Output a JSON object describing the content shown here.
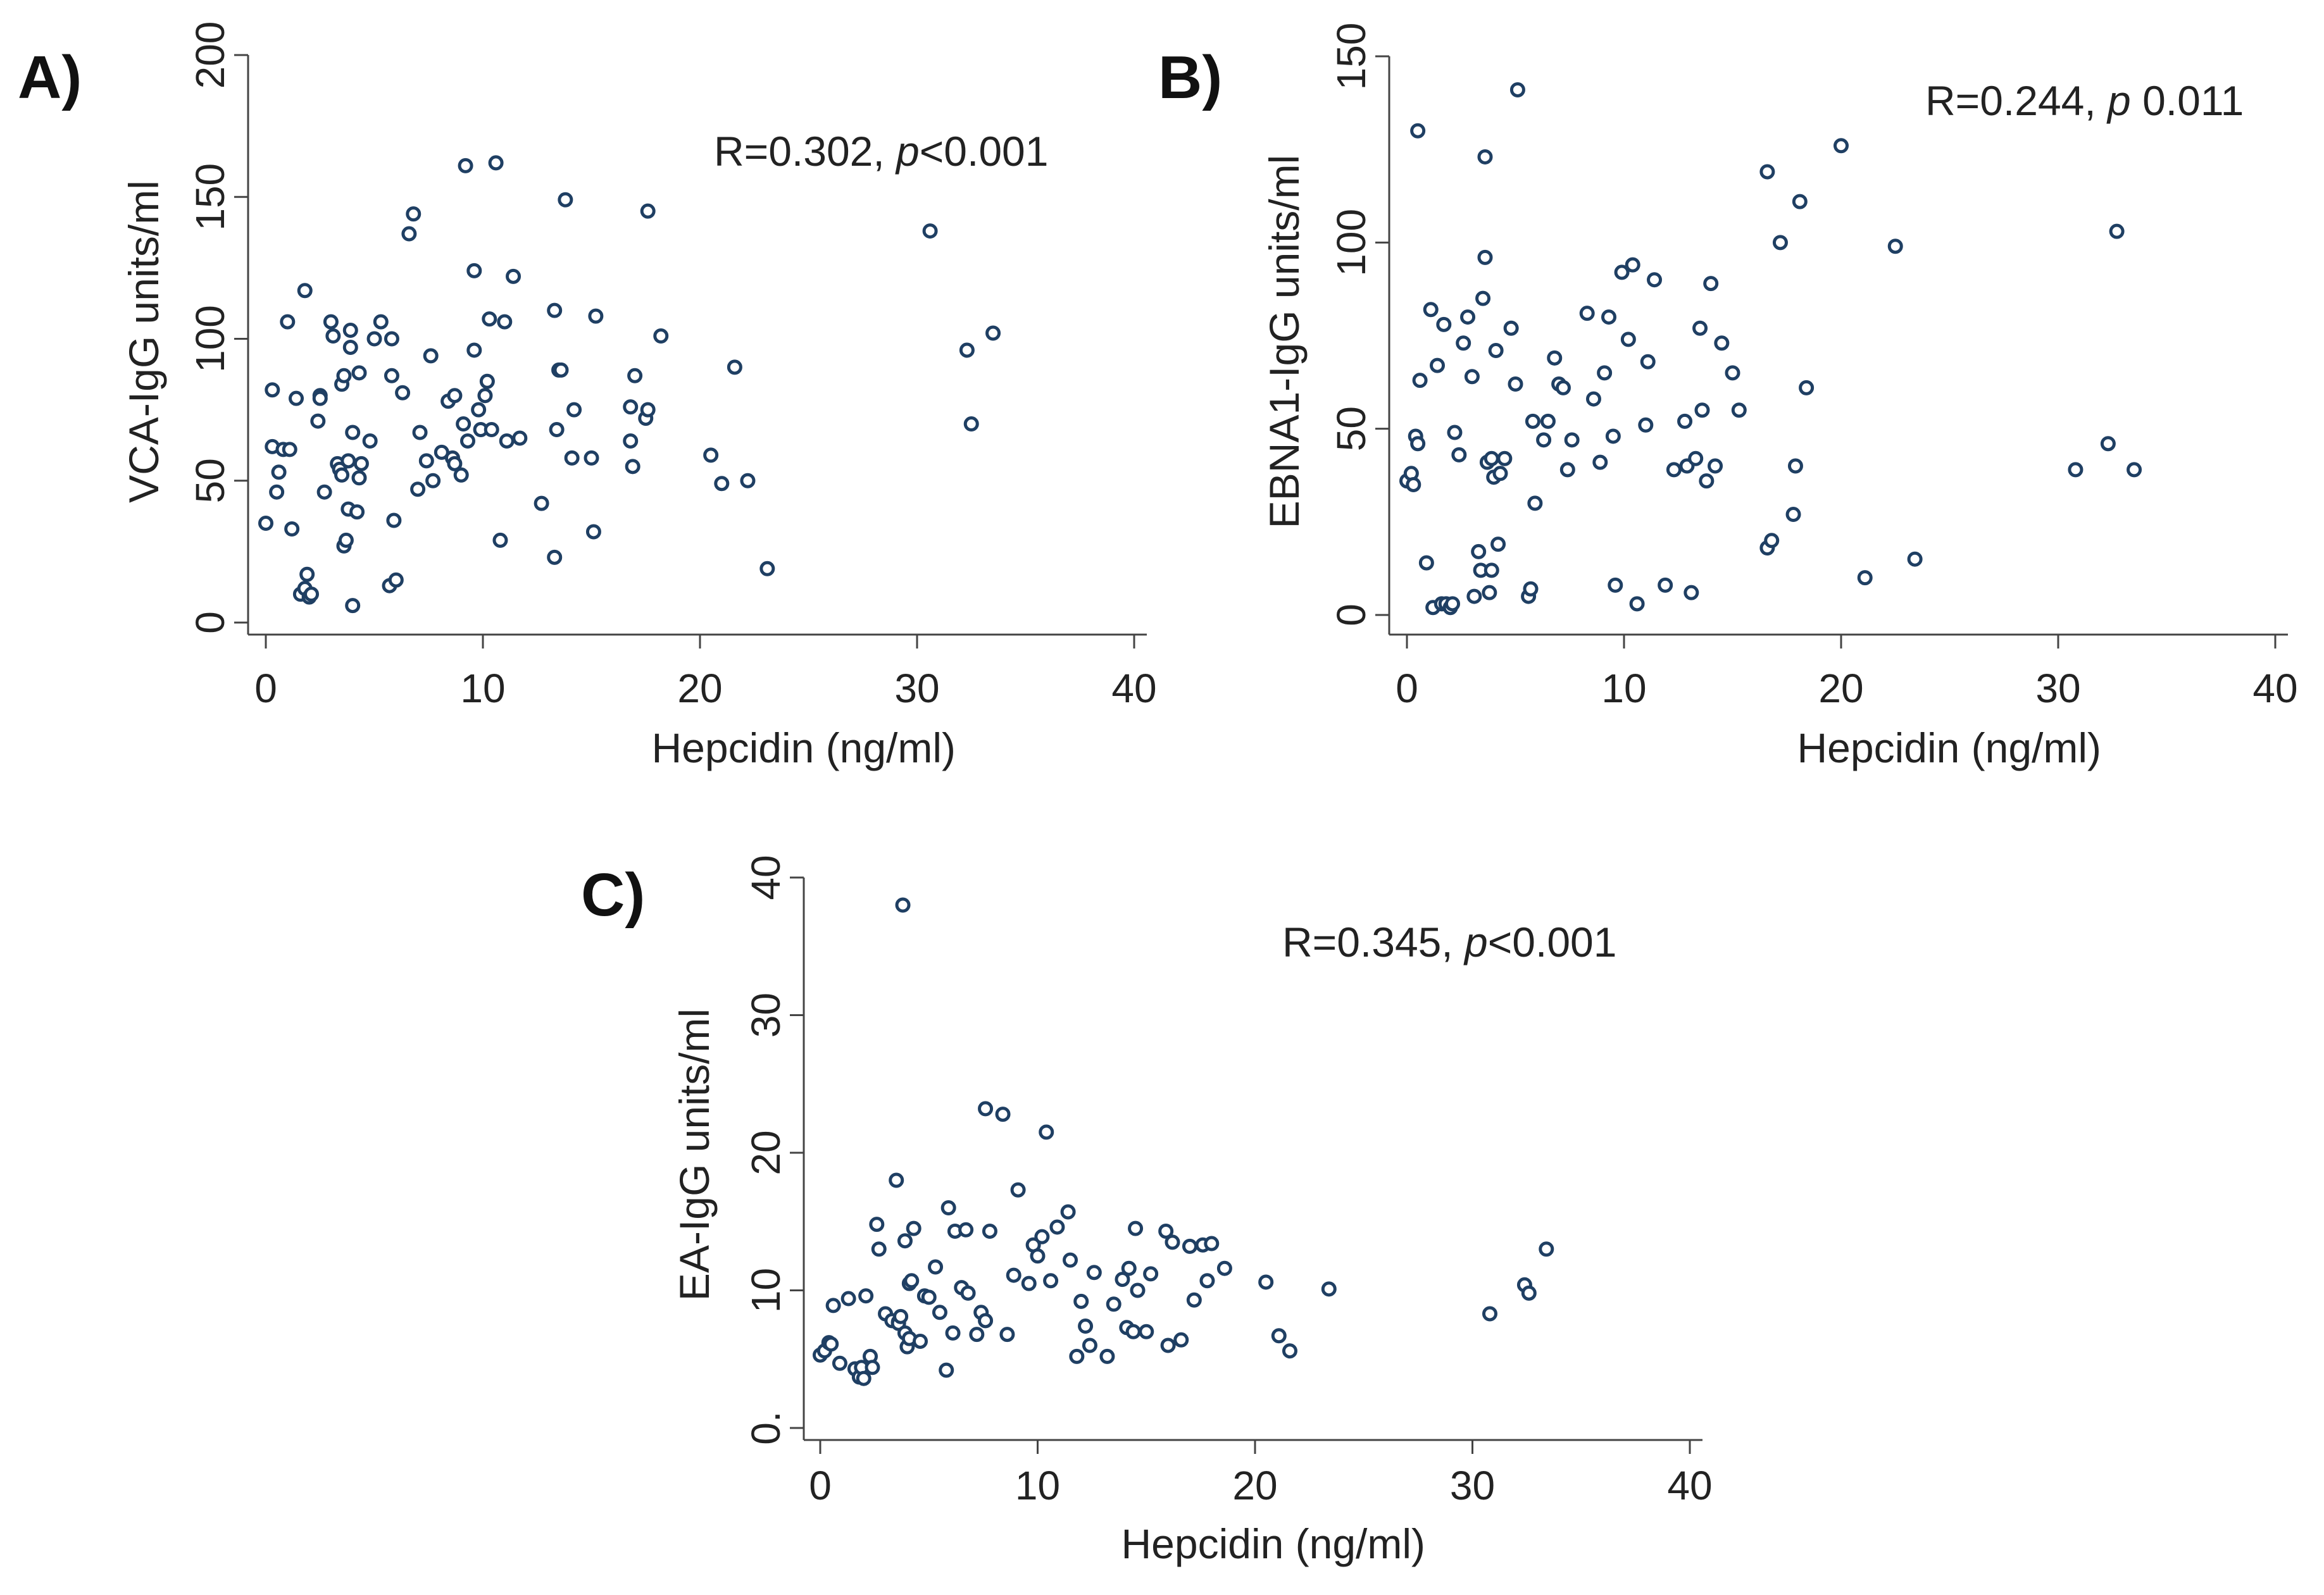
{
  "colors": {
    "marker": "#1f3f63",
    "axis": "#444444",
    "text": "#222222"
  },
  "chart_data": [
    {
      "panel": "A)",
      "type": "scatter",
      "title": "",
      "annotation_prefix": "R=0.302, ",
      "annotation_p": "p",
      "annotation_suffix": "<0.001",
      "xlabel": "Hepcidin (ng/ml)",
      "ylabel": "VCA-IgG units/ml",
      "xlim": [
        0,
        40
      ],
      "ylim": [
        0,
        200
      ],
      "xticks": [
        "0",
        "10",
        "20",
        "30",
        "40"
      ],
      "yticks": [
        "0",
        "50",
        "100",
        "150",
        "200"
      ],
      "xtick_values": [
        0,
        10,
        20,
        30,
        40
      ],
      "ytick_values": [
        0,
        50,
        100,
        150,
        200
      ],
      "points": [
        [
          0.0,
          35
        ],
        [
          0.3,
          82
        ],
        [
          0.3,
          62
        ],
        [
          0.5,
          46
        ],
        [
          0.6,
          53
        ],
        [
          0.8,
          61
        ],
        [
          1.0,
          106
        ],
        [
          1.1,
          61
        ],
        [
          1.2,
          33
        ],
        [
          1.4,
          79
        ],
        [
          1.6,
          10
        ],
        [
          1.8,
          12
        ],
        [
          1.8,
          117
        ],
        [
          1.9,
          17
        ],
        [
          2.0,
          9
        ],
        [
          2.1,
          10
        ],
        [
          2.4,
          71
        ],
        [
          2.5,
          80
        ],
        [
          2.5,
          79
        ],
        [
          2.7,
          46
        ],
        [
          3.0,
          106
        ],
        [
          3.1,
          101
        ],
        [
          3.3,
          56
        ],
        [
          3.4,
          54
        ],
        [
          3.5,
          52
        ],
        [
          3.5,
          84
        ],
        [
          3.6,
          87
        ],
        [
          3.6,
          27
        ],
        [
          3.7,
          29
        ],
        [
          3.8,
          40
        ],
        [
          3.8,
          57
        ],
        [
          3.9,
          97
        ],
        [
          3.9,
          103
        ],
        [
          4.0,
          6
        ],
        [
          4.0,
          67
        ],
        [
          4.2,
          39
        ],
        [
          4.3,
          51
        ],
        [
          4.3,
          88
        ],
        [
          4.4,
          56
        ],
        [
          4.8,
          64
        ],
        [
          5.0,
          100
        ],
        [
          5.3,
          106
        ],
        [
          5.7,
          13
        ],
        [
          5.8,
          100
        ],
        [
          5.8,
          87
        ],
        [
          5.9,
          36
        ],
        [
          6.0,
          15
        ],
        [
          6.3,
          81
        ],
        [
          6.6,
          137
        ],
        [
          6.8,
          144
        ],
        [
          7.0,
          47
        ],
        [
          7.1,
          67
        ],
        [
          7.4,
          57
        ],
        [
          7.6,
          94
        ],
        [
          7.7,
          50
        ],
        [
          8.1,
          60
        ],
        [
          8.4,
          78
        ],
        [
          8.6,
          58
        ],
        [
          8.7,
          80
        ],
        [
          8.7,
          56
        ],
        [
          9.0,
          52
        ],
        [
          9.1,
          70
        ],
        [
          9.2,
          161
        ],
        [
          9.3,
          64
        ],
        [
          9.6,
          124
        ],
        [
          9.6,
          96
        ],
        [
          9.8,
          75
        ],
        [
          9.9,
          68
        ],
        [
          10.1,
          80
        ],
        [
          10.2,
          85
        ],
        [
          10.3,
          107
        ],
        [
          10.4,
          68
        ],
        [
          10.6,
          162
        ],
        [
          10.8,
          29
        ],
        [
          11.0,
          106
        ],
        [
          11.1,
          64
        ],
        [
          11.4,
          122
        ],
        [
          11.7,
          65
        ],
        [
          12.7,
          42
        ],
        [
          13.3,
          23
        ],
        [
          13.3,
          110
        ],
        [
          13.4,
          68
        ],
        [
          13.5,
          89
        ],
        [
          13.6,
          89
        ],
        [
          13.8,
          149
        ],
        [
          14.1,
          58
        ],
        [
          14.2,
          75
        ],
        [
          15.0,
          58
        ],
        [
          15.1,
          32
        ],
        [
          15.2,
          108
        ],
        [
          16.8,
          76
        ],
        [
          16.8,
          64
        ],
        [
          16.9,
          55
        ],
        [
          17.0,
          87
        ],
        [
          17.5,
          72
        ],
        [
          17.6,
          75
        ],
        [
          17.6,
          145
        ],
        [
          18.2,
          101
        ],
        [
          20.5,
          59
        ],
        [
          21.0,
          49
        ],
        [
          21.6,
          90
        ],
        [
          22.2,
          50
        ],
        [
          23.1,
          19
        ],
        [
          30.6,
          138
        ],
        [
          32.3,
          96
        ],
        [
          32.5,
          70
        ],
        [
          33.5,
          102
        ]
      ]
    },
    {
      "panel": "B)",
      "type": "scatter",
      "title": "",
      "annotation_prefix": "R=0.244, ",
      "annotation_p": "p",
      "annotation_suffix": " 0.011",
      "xlabel": "Hepcidin (ng/ml)",
      "ylabel": "EBNA1-IgG units/ml",
      "xlim": [
        0,
        40
      ],
      "ylim": [
        0,
        150
      ],
      "xticks": [
        "0",
        "10",
        "20",
        "30",
        "40"
      ],
      "yticks": [
        "0",
        "50",
        "100",
        "150"
      ],
      "xtick_values": [
        0,
        10,
        20,
        30,
        40
      ],
      "ytick_values": [
        0,
        50,
        100,
        150
      ],
      "points": [
        [
          0.0,
          36
        ],
        [
          0.2,
          38
        ],
        [
          0.3,
          35
        ],
        [
          0.4,
          48
        ],
        [
          0.5,
          46
        ],
        [
          0.5,
          130
        ],
        [
          0.6,
          63
        ],
        [
          0.9,
          14
        ],
        [
          1.1,
          82
        ],
        [
          1.2,
          2
        ],
        [
          1.4,
          67
        ],
        [
          1.6,
          3
        ],
        [
          1.7,
          78
        ],
        [
          1.8,
          3
        ],
        [
          2.0,
          2
        ],
        [
          2.1,
          3
        ],
        [
          2.2,
          49
        ],
        [
          2.4,
          43
        ],
        [
          2.6,
          73
        ],
        [
          2.8,
          80
        ],
        [
          3.0,
          64
        ],
        [
          3.1,
          5
        ],
        [
          3.3,
          17
        ],
        [
          3.4,
          12
        ],
        [
          3.5,
          85
        ],
        [
          3.6,
          123
        ],
        [
          3.6,
          96
        ],
        [
          3.7,
          41
        ],
        [
          3.8,
          6
        ],
        [
          3.9,
          42
        ],
        [
          3.9,
          12
        ],
        [
          4.0,
          37
        ],
        [
          4.1,
          71
        ],
        [
          4.2,
          19
        ],
        [
          4.3,
          38
        ],
        [
          4.5,
          42
        ],
        [
          4.8,
          77
        ],
        [
          5.0,
          62
        ],
        [
          5.1,
          141
        ],
        [
          5.6,
          5
        ],
        [
          5.7,
          7
        ],
        [
          5.8,
          52
        ],
        [
          5.9,
          30
        ],
        [
          6.3,
          47
        ],
        [
          6.5,
          52
        ],
        [
          6.8,
          69
        ],
        [
          7.0,
          62
        ],
        [
          7.2,
          61
        ],
        [
          7.4,
          39
        ],
        [
          7.6,
          47
        ],
        [
          8.3,
          81
        ],
        [
          8.6,
          58
        ],
        [
          8.9,
          41
        ],
        [
          9.1,
          65
        ],
        [
          9.3,
          80
        ],
        [
          9.5,
          48
        ],
        [
          9.6,
          8
        ],
        [
          9.9,
          92
        ],
        [
          10.2,
          74
        ],
        [
          10.4,
          94
        ],
        [
          10.6,
          3
        ],
        [
          11.0,
          51
        ],
        [
          11.1,
          68
        ],
        [
          11.4,
          90
        ],
        [
          11.9,
          8
        ],
        [
          12.3,
          39
        ],
        [
          12.8,
          52
        ],
        [
          12.9,
          40
        ],
        [
          13.1,
          6
        ],
        [
          13.3,
          42
        ],
        [
          13.5,
          77
        ],
        [
          13.6,
          55
        ],
        [
          13.8,
          36
        ],
        [
          14.0,
          89
        ],
        [
          14.2,
          40
        ],
        [
          14.5,
          73
        ],
        [
          15.0,
          65
        ],
        [
          15.3,
          55
        ],
        [
          16.6,
          119
        ],
        [
          16.6,
          18
        ],
        [
          16.8,
          20
        ],
        [
          17.2,
          100
        ],
        [
          17.8,
          27
        ],
        [
          17.9,
          40
        ],
        [
          18.1,
          111
        ],
        [
          18.4,
          61
        ],
        [
          20.0,
          126
        ],
        [
          21.1,
          10
        ],
        [
          22.5,
          99
        ],
        [
          23.4,
          15
        ],
        [
          30.8,
          39
        ],
        [
          32.3,
          46
        ],
        [
          32.7,
          103
        ],
        [
          33.5,
          39
        ]
      ]
    },
    {
      "panel": "C)",
      "type": "scatter",
      "title": "",
      "annotation_prefix": "R=0.345, ",
      "annotation_p": "p",
      "annotation_suffix": "<0.001",
      "xlabel": "Hepcidin (ng/ml)",
      "ylabel": "EA-IgG units/ml",
      "xlim": [
        0,
        40
      ],
      "ylim": [
        0,
        40
      ],
      "xticks": [
        "0",
        "10",
        "20",
        "30",
        "40"
      ],
      "yticks": [
        "0.",
        "10",
        "20",
        "30",
        "40"
      ],
      "xtick_values": [
        0,
        10,
        20,
        30,
        40
      ],
      "ytick_values": [
        0,
        10,
        20,
        30,
        40
      ],
      "points": [
        [
          0.0,
          5.3
        ],
        [
          0.2,
          5.6
        ],
        [
          0.4,
          6.2
        ],
        [
          0.5,
          6.1
        ],
        [
          0.6,
          8.9
        ],
        [
          0.9,
          4.7
        ],
        [
          1.3,
          9.4
        ],
        [
          1.6,
          4.3
        ],
        [
          1.8,
          3.7
        ],
        [
          1.9,
          4.4
        ],
        [
          2.0,
          3.6
        ],
        [
          2.1,
          9.6
        ],
        [
          2.3,
          5.2
        ],
        [
          2.4,
          4.4
        ],
        [
          2.6,
          14.8
        ],
        [
          2.7,
          13.0
        ],
        [
          3.0,
          8.3
        ],
        [
          3.3,
          7.8
        ],
        [
          3.5,
          18.0
        ],
        [
          3.6,
          7.7
        ],
        [
          3.6,
          7.6
        ],
        [
          3.7,
          8.1
        ],
        [
          3.8,
          38.0
        ],
        [
          3.9,
          6.9
        ],
        [
          3.9,
          13.6
        ],
        [
          4.0,
          5.9
        ],
        [
          4.1,
          10.5
        ],
        [
          4.1,
          6.5
        ],
        [
          4.2,
          10.7
        ],
        [
          4.3,
          14.5
        ],
        [
          4.6,
          6.3
        ],
        [
          4.8,
          9.6
        ],
        [
          5.0,
          9.5
        ],
        [
          5.3,
          11.7
        ],
        [
          5.5,
          8.4
        ],
        [
          5.8,
          4.2
        ],
        [
          5.9,
          16.0
        ],
        [
          6.1,
          6.9
        ],
        [
          6.2,
          14.3
        ],
        [
          6.5,
          10.2
        ],
        [
          6.7,
          14.4
        ],
        [
          6.8,
          9.8
        ],
        [
          7.2,
          6.8
        ],
        [
          7.4,
          8.4
        ],
        [
          7.6,
          23.2
        ],
        [
          7.6,
          7.8
        ],
        [
          7.8,
          14.3
        ],
        [
          8.4,
          22.8
        ],
        [
          8.6,
          6.8
        ],
        [
          8.9,
          11.1
        ],
        [
          9.1,
          17.3
        ],
        [
          9.6,
          10.5
        ],
        [
          9.8,
          13.3
        ],
        [
          10.0,
          12.5
        ],
        [
          10.2,
          13.9
        ],
        [
          10.4,
          21.5
        ],
        [
          10.6,
          10.7
        ],
        [
          10.9,
          14.6
        ],
        [
          11.4,
          15.7
        ],
        [
          11.5,
          12.2
        ],
        [
          11.8,
          5.2
        ],
        [
          12.0,
          9.2
        ],
        [
          12.2,
          7.4
        ],
        [
          12.4,
          6.0
        ],
        [
          12.6,
          11.3
        ],
        [
          13.2,
          5.2
        ],
        [
          13.5,
          9.0
        ],
        [
          13.9,
          10.8
        ],
        [
          14.1,
          7.3
        ],
        [
          14.2,
          11.6
        ],
        [
          14.4,
          7.0
        ],
        [
          14.5,
          14.5
        ],
        [
          14.6,
          10.0
        ],
        [
          15.0,
          7.0
        ],
        [
          15.2,
          11.2
        ],
        [
          15.9,
          14.3
        ],
        [
          16.0,
          6.0
        ],
        [
          16.2,
          13.5
        ],
        [
          16.6,
          6.4
        ],
        [
          17.0,
          13.2
        ],
        [
          17.2,
          9.3
        ],
        [
          17.6,
          13.3
        ],
        [
          17.8,
          10.7
        ],
        [
          18.0,
          13.4
        ],
        [
          18.6,
          11.6
        ],
        [
          20.5,
          10.6
        ],
        [
          21.1,
          6.7
        ],
        [
          21.6,
          5.6
        ],
        [
          23.4,
          10.1
        ],
        [
          30.8,
          8.3
        ],
        [
          32.4,
          10.4
        ],
        [
          32.6,
          9.8
        ],
        [
          33.4,
          13.0
        ]
      ]
    }
  ]
}
